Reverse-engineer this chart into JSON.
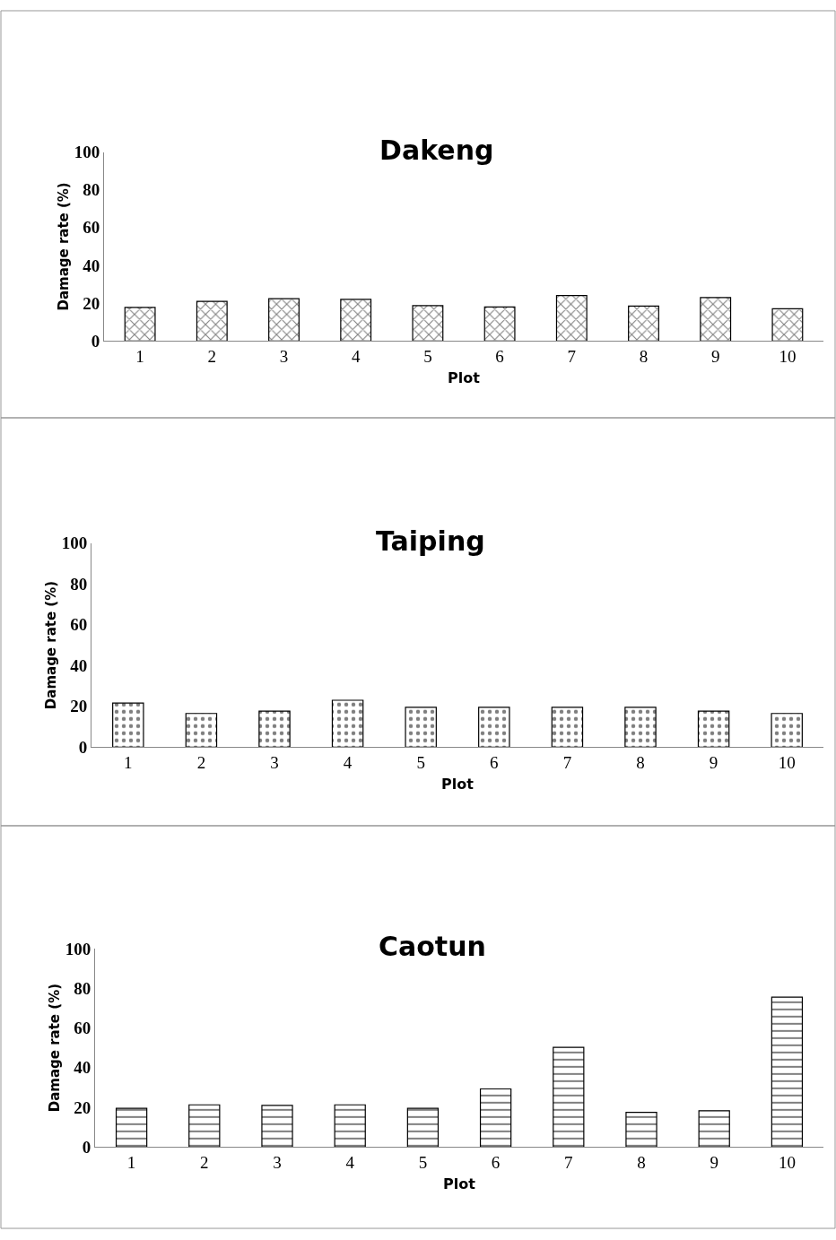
{
  "chart_data": [
    {
      "type": "bar",
      "title": "Dakeng",
      "xlabel": "Plot",
      "ylabel": "Damage rate (%)",
      "categories": [
        "1",
        "2",
        "3",
        "4",
        "5",
        "6",
        "7",
        "8",
        "9",
        "10"
      ],
      "values": [
        17.8,
        21,
        22.4,
        22,
        18.7,
        18,
        24,
        18.5,
        23,
        17
      ],
      "color": "#000000",
      "ylim": [
        0,
        100
      ],
      "yticks": [
        0,
        20,
        40,
        60,
        80,
        100
      ]
    },
    {
      "type": "bar",
      "title": "Taiping",
      "xlabel": "Plot",
      "ylabel": "Damage rate (%)",
      "categories": [
        "1",
        "2",
        "3",
        "4",
        "5",
        "6",
        "7",
        "8",
        "9",
        "10"
      ],
      "values": [
        21.6,
        16.5,
        17.7,
        23,
        19.5,
        19.5,
        19.5,
        19.5,
        17.7,
        16.5
      ],
      "color": "#000000",
      "ylim": [
        0,
        100
      ],
      "yticks": [
        0,
        20,
        40,
        60,
        80,
        100
      ]
    },
    {
      "type": "bar",
      "title": "Caotun",
      "xlabel": "Plot",
      "ylabel": "Damage rate (%)",
      "categories": [
        "1",
        "2",
        "3",
        "4",
        "5",
        "6",
        "7",
        "8",
        "9",
        "10"
      ],
      "values": [
        19.5,
        21.3,
        21,
        21.3,
        19.5,
        29.3,
        50.2,
        17.5,
        18.3,
        75.5
      ],
      "color": "#000000",
      "ylim": [
        0,
        100
      ],
      "yticks": [
        0,
        20,
        40,
        60,
        80,
        100
      ]
    }
  ]
}
